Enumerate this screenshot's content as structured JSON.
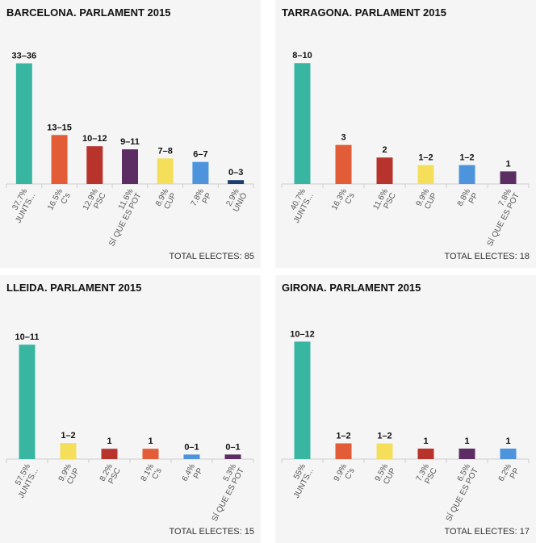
{
  "colors": {
    "JUNTS": "#39b6a2",
    "CS": "#e15c37",
    "PSC": "#b8332b",
    "SQEP": "#5c2d62",
    "CUP": "#f5df5a",
    "PP": "#4e94dd",
    "UNIO": "#1c3d6e"
  },
  "chart_data": [
    {
      "type": "bar",
      "title": "BARCELONA. PARLAMENT 2015",
      "total": "TOTAL ELECTES: 85",
      "ylim": [
        0,
        36
      ],
      "categories": [
        "JUNTS...",
        "C's",
        "PSC",
        "SÍ QUE ES POT",
        "CUP",
        "PP",
        "UNIÓ"
      ],
      "percentages": [
        "37.7%",
        "16.5%",
        "12.9%",
        "11.6%",
        "8.9%",
        "7.8%",
        "2.9%"
      ],
      "seat_labels": [
        "33–36",
        "13–15",
        "10–12",
        "9–11",
        "7–8",
        "6–7",
        "0–3"
      ],
      "values": [
        34.5,
        14.0,
        10.8,
        9.9,
        7.3,
        6.3,
        1.1
      ],
      "color_keys": [
        "JUNTS",
        "CS",
        "PSC",
        "SQEP",
        "CUP",
        "PP",
        "UNIO"
      ]
    },
    {
      "type": "bar",
      "title": "TARRAGONA. PARLAMENT 2015",
      "total": "TOTAL ELECTES: 18",
      "ylim": [
        0,
        10
      ],
      "categories": [
        "JUNTS...",
        "C's",
        "PSC",
        "CUP",
        "PP",
        "SÍ QUE ES POT"
      ],
      "percentages": [
        "40.7%",
        "16.3%",
        "11.6%",
        "9.9%",
        "8.8%",
        "7.8%"
      ],
      "seat_labels": [
        "8–10",
        "3",
        "2",
        "1–2",
        "1–2",
        "1"
      ],
      "values": [
        9.6,
        3.1,
        2.1,
        1.5,
        1.5,
        1.0
      ],
      "color_keys": [
        "JUNTS",
        "CS",
        "PSC",
        "CUP",
        "PP",
        "SQEP"
      ]
    },
    {
      "type": "bar",
      "title": "LLEIDA. PARLAMENT 2015",
      "total": "TOTAL ELECTES: 15",
      "ylim": [
        0,
        11
      ],
      "categories": [
        "JUNTS...",
        "CUP",
        "PSC",
        "C's",
        "PP",
        "SÍ QUE ES POT"
      ],
      "percentages": [
        "57.5%",
        "9.9%",
        "8.2%",
        "8.1%",
        "6.4%",
        "5.3%"
      ],
      "seat_labels": [
        "10–11",
        "1–2",
        "1",
        "1",
        "0–1",
        "0–1"
      ],
      "values": [
        10.0,
        1.4,
        0.9,
        0.9,
        0.4,
        0.4
      ],
      "color_keys": [
        "JUNTS",
        "CUP",
        "PSC",
        "CS",
        "PP",
        "SQEP"
      ]
    },
    {
      "type": "bar",
      "title": "GIRONA. PARLAMENT 2015",
      "total": "TOTAL ELECTES: 17",
      "ylim": [
        0,
        12
      ],
      "categories": [
        "JUNTS...",
        "C's",
        "CUP",
        "PSC",
        "SÍ QUE ES POT",
        "PP"
      ],
      "percentages": [
        "55%",
        "9.9%",
        "9.5%",
        "7.3%",
        "6.5%",
        "6.2%"
      ],
      "seat_labels": [
        "10–12",
        "1–2",
        "1–2",
        "1",
        "1",
        "1"
      ],
      "values": [
        11.2,
        1.5,
        1.5,
        1.0,
        1.0,
        1.0
      ],
      "color_keys": [
        "JUNTS",
        "CS",
        "CUP",
        "PSC",
        "SQEP",
        "PP"
      ]
    }
  ]
}
